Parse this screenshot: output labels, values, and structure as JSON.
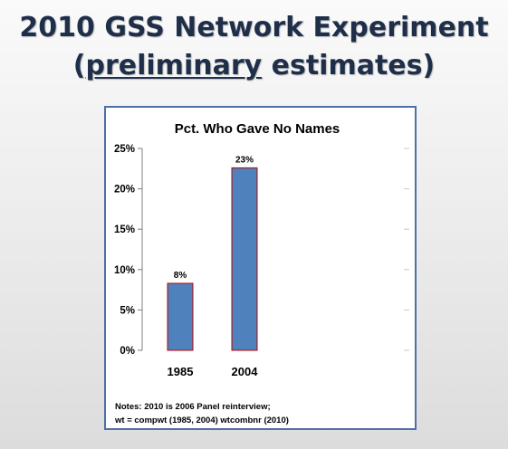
{
  "slide": {
    "title_line1": "2010 GSS Network Experiment",
    "title_open": "(",
    "title_underlined": "preliminary",
    "title_rest": " estimates)"
  },
  "chart_data": {
    "type": "bar",
    "title": "Pct. Who Gave No Names",
    "categories": [
      "1985",
      "2004"
    ],
    "values": [
      8.3,
      22.6
    ],
    "data_labels": [
      "8%",
      "23%"
    ],
    "y_ticks": [
      "0%",
      "5%",
      "10%",
      "15%",
      "20%",
      "25%"
    ],
    "ylim": [
      0,
      25
    ],
    "xlabel": "",
    "ylabel": "",
    "bar_color": "#4f81bd",
    "bar_edge_color": "#c00000",
    "grid": false
  },
  "notes": {
    "line1": "Notes: 2010 is 2006 Panel reinterview;",
    "line2": "wt = compwt (1985, 2004)  wtcombnr (2010)"
  }
}
